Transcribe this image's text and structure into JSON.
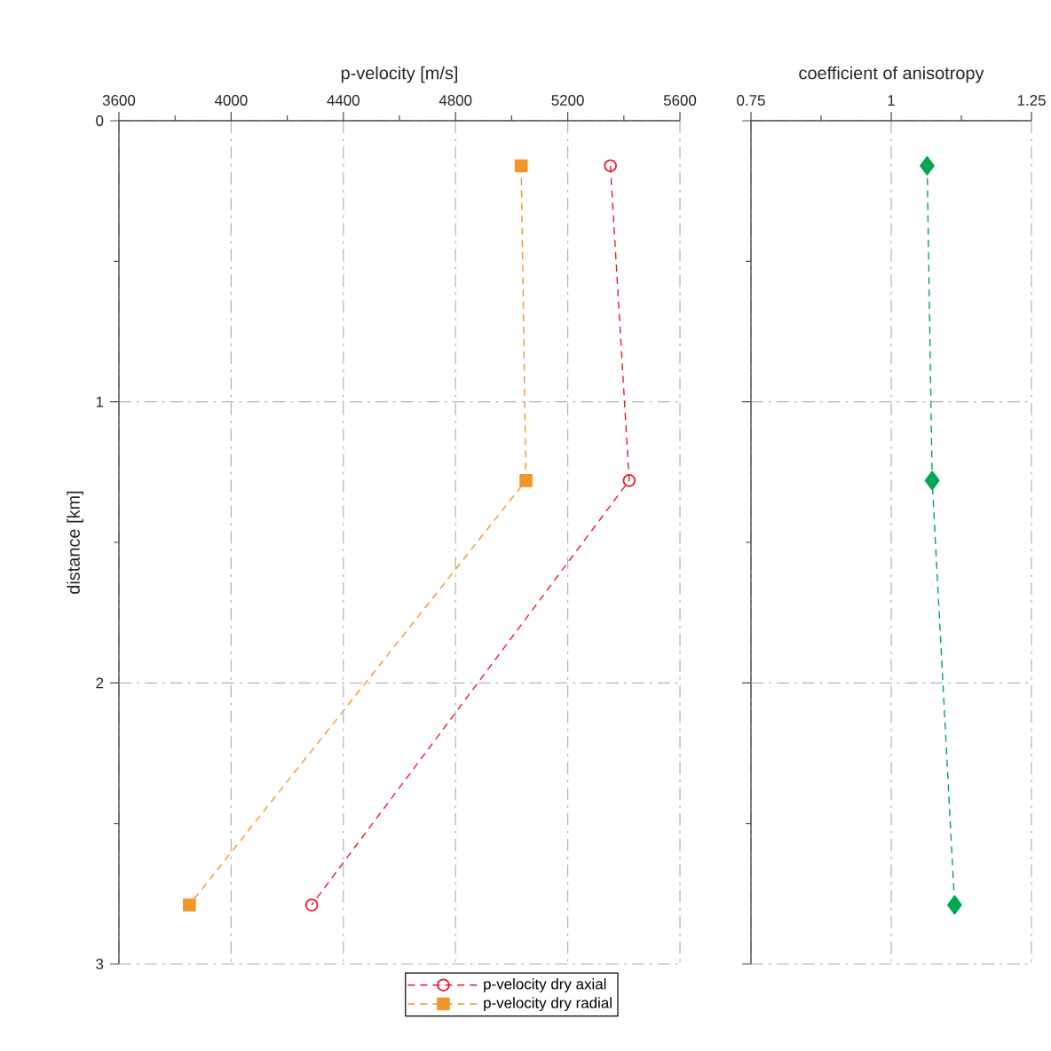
{
  "chart_data": [
    {
      "type": "line",
      "xlabel": "p-velocity [m/s]",
      "ylabel": "distance [km]",
      "xlim": [
        3600,
        5600
      ],
      "xticks": [
        3600,
        4000,
        4400,
        4800,
        5200,
        5600
      ],
      "ylim": [
        3,
        0
      ],
      "yticks": [
        0,
        1,
        2,
        3
      ],
      "grid": true,
      "legend": "bottom",
      "line_style": "dashed",
      "series": [
        {
          "name": "p-velocity dry axial",
          "color": "#e8192c",
          "marker": "circle",
          "x": [
            5352,
            5419,
            4287
          ],
          "values": [
            0.16,
            1.28,
            2.79
          ]
        },
        {
          "name": "p-velocity dry radial",
          "color": "#f0962a",
          "marker": "square",
          "x": [
            5034,
            5051,
            3851
          ],
          "values": [
            0.16,
            1.28,
            2.79
          ]
        }
      ]
    },
    {
      "type": "line",
      "xlabel": "coefficient of anisotropy",
      "xlim": [
        0.75,
        1.25
      ],
      "xticks": [
        0.75,
        1,
        1.25
      ],
      "ylim": [
        3,
        0
      ],
      "yticks": [
        0,
        1,
        2,
        3
      ],
      "grid": true,
      "tick_labels": "x",
      "line_style": "dashed",
      "series": [
        {
          "color": "#00a650",
          "marker": "diamond",
          "x": [
            1.064,
            1.073,
            1.113
          ],
          "values": [
            0.16,
            1.28,
            2.79
          ]
        }
      ]
    }
  ]
}
